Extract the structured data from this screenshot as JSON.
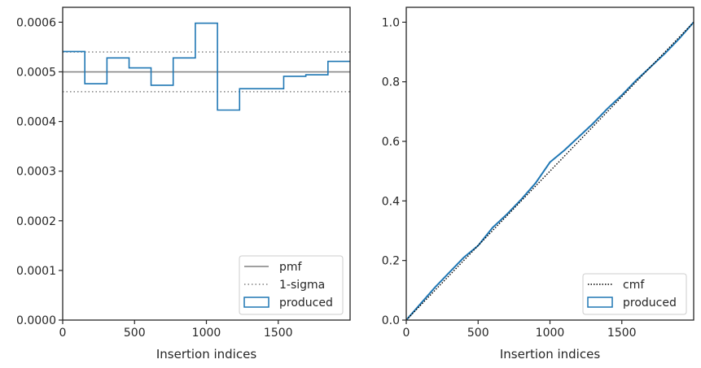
{
  "chart_data": [
    {
      "type": "step",
      "xlabel": "Insertion indices",
      "ylabel": "",
      "xlim": [
        0,
        2000
      ],
      "ylim": [
        0,
        0.00063
      ],
      "xticks": [
        0,
        500,
        1000,
        1500
      ],
      "xtick_labels": [
        "0",
        "500",
        "1000",
        "1500"
      ],
      "yticks": [
        0,
        0.0001,
        0.0002,
        0.0003,
        0.0004,
        0.0005,
        0.0006
      ],
      "ytick_labels": [
        "0.0000",
        "0.0001",
        "0.0002",
        "0.0003",
        "0.0004",
        "0.0005",
        "0.0006"
      ],
      "bin_edges": [
        0,
        154,
        308,
        462,
        615,
        769,
        923,
        1077,
        1231,
        1385,
        1538,
        1692,
        1846,
        2000
      ],
      "series": [
        {
          "name": "pmf",
          "style": "solid",
          "color": "#808080",
          "values": [
            0.0005
          ]
        },
        {
          "name": "1-sigma",
          "style": "dotted",
          "color": "#808080",
          "values": [
            0.00046,
            0.00054
          ]
        },
        {
          "name": "produced",
          "style": "step",
          "color": "#1f77b4",
          "values": [
            0.000541,
            0.000476,
            0.000528,
            0.000508,
            0.000473,
            0.000528,
            0.000598,
            0.000423,
            0.000466,
            0.000466,
            0.000491,
            0.000494,
            0.000521
          ]
        }
      ],
      "legend": {
        "position": "lower-right",
        "entries": [
          "pmf",
          "1-sigma",
          "produced"
        ]
      }
    },
    {
      "type": "line",
      "xlabel": "Insertion indices",
      "ylabel": "",
      "xlim": [
        0,
        2000
      ],
      "ylim": [
        0,
        1.05
      ],
      "xticks": [
        0,
        500,
        1000,
        1500
      ],
      "xtick_labels": [
        "0",
        "500",
        "1000",
        "1500"
      ],
      "yticks": [
        0,
        0.2,
        0.4,
        0.6,
        0.8,
        1.0
      ],
      "ytick_labels": [
        "0.0",
        "0.2",
        "0.4",
        "0.6",
        "0.8",
        "1.0"
      ],
      "series": [
        {
          "name": "cmf",
          "style": "dotted",
          "color": "#000000",
          "x": [
            0,
            2000
          ],
          "y": [
            0,
            1.0
          ]
        },
        {
          "name": "produced",
          "style": "step",
          "color": "#1f77b4",
          "x": [
            0,
            100,
            200,
            300,
            400,
            500,
            600,
            700,
            800,
            900,
            1000,
            1100,
            1200,
            1300,
            1400,
            1500,
            1600,
            1700,
            1800,
            1900,
            2000
          ],
          "y": [
            0,
            0.055,
            0.11,
            0.16,
            0.21,
            0.25,
            0.31,
            0.355,
            0.405,
            0.46,
            0.53,
            0.57,
            0.615,
            0.66,
            0.71,
            0.755,
            0.805,
            0.85,
            0.895,
            0.945,
            1.0
          ]
        }
      ],
      "legend": {
        "position": "lower-right",
        "entries": [
          "cmf",
          "produced"
        ]
      }
    }
  ]
}
